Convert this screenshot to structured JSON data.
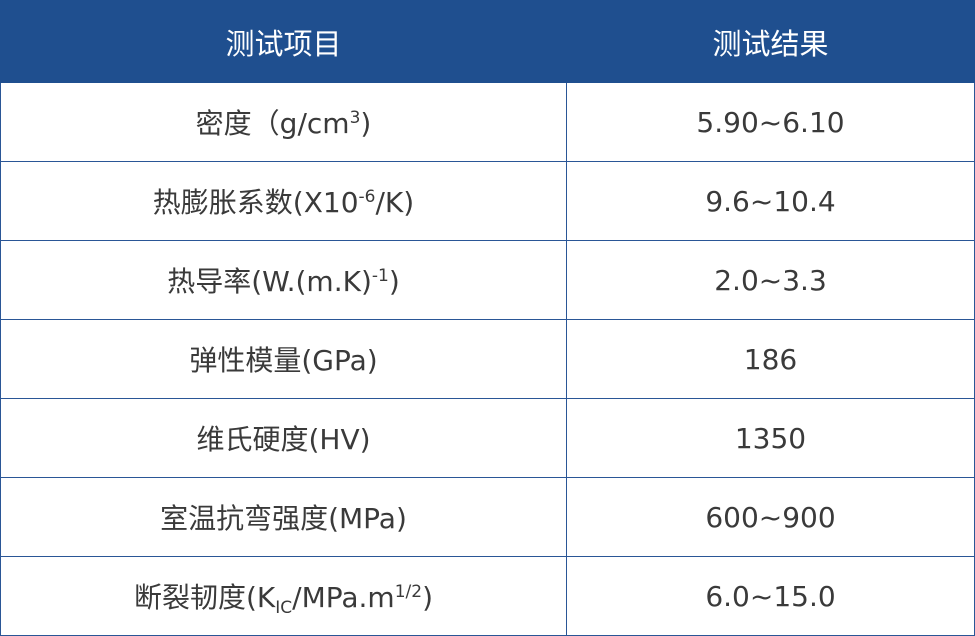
{
  "header": {
    "col1": "测试项目",
    "col2": "测试结果"
  },
  "colors": {
    "header_bg": "#1f4f8f",
    "border": "#2a5696",
    "text": "#3a3a3a"
  },
  "rows": [
    {
      "label": {
        "main": "密度（g/cm",
        "sup": "3",
        "tail": ")"
      },
      "value": "5.90~6.10"
    },
    {
      "label": {
        "main": "热膨胀系数(X10",
        "sup": "-6",
        "tail": "/K)"
      },
      "value": "9.6~10.4"
    },
    {
      "label": {
        "main": "热导率(W.(m.K)",
        "sup": "-1",
        "tail": ")"
      },
      "value": "2.0~3.3"
    },
    {
      "label": {
        "main": "弹性模量(GPa)"
      },
      "value": "186"
    },
    {
      "label": {
        "main": "维氏硬度(HV)"
      },
      "value": "1350"
    },
    {
      "label": {
        "main": "室温抗弯强度(MPa)"
      },
      "value": "600~900"
    },
    {
      "label": {
        "main": "断裂韧度(K",
        "sub": "IC",
        "mid": "/MPa.m",
        "sup": "1/2",
        "tail": ")"
      },
      "value": "6.0~15.0"
    }
  ]
}
